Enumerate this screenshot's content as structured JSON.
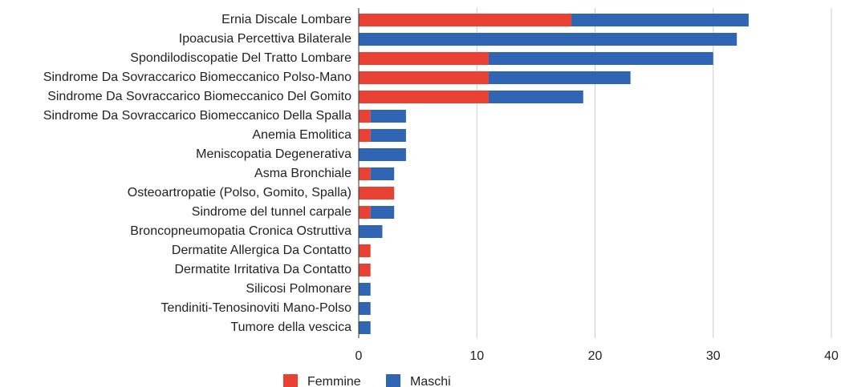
{
  "chart_data": {
    "type": "stacked_bar_horizontal",
    "categories": [
      "Ernia Discale Lombare",
      "Ipoacusia Percettiva Bilaterale",
      "Spondilodiscopatie Del Tratto Lombare",
      "Sindrome Da Sovraccarico Biomeccanico Polso-Mano",
      "Sindrome Da Sovraccarico Biomeccanico Del Gomito",
      "Sindrome Da Sovraccarico Biomeccanico Della Spalla",
      "Anemia Emolitica",
      "Meniscopatia Degenerativa",
      "Asma Bronchiale",
      "Osteoartropatie (Polso, Gomito, Spalla)",
      "Sindrome del tunnel carpale",
      "Broncopneumopatia Cronica Ostruttiva",
      "Dermatite Allergica Da Contatto",
      "Dermatite Irritativa Da Contatto",
      "Silicosi Polmonare",
      "Tendiniti-Tenosinoviti Mano-Polso",
      "Tumore della vescica"
    ],
    "series": [
      {
        "name": "Femmine",
        "color": "#e94235",
        "values": [
          18,
          0,
          11,
          11,
          11,
          1,
          1,
          0,
          1,
          3,
          1,
          0,
          1,
          1,
          0,
          0,
          0
        ]
      },
      {
        "name": "Maschi",
        "color": "#2f65b3",
        "values": [
          15,
          32,
          19,
          12,
          8,
          3,
          3,
          4,
          2,
          0,
          2,
          2,
          0,
          0,
          1,
          1,
          1
        ]
      }
    ],
    "xlim": [
      0,
      40
    ],
    "xticks": [
      0,
      10,
      20,
      30,
      40
    ],
    "grid": true,
    "legend": "bottom"
  }
}
